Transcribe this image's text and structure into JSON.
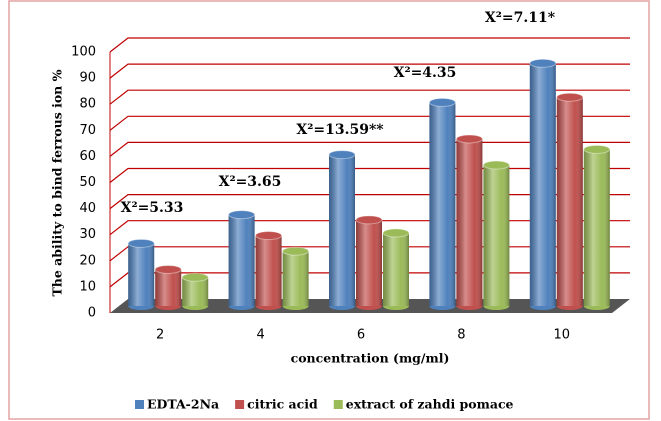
{
  "chart_data": {
    "type": "bar",
    "categories": [
      "2",
      "4",
      "6",
      "8",
      "10"
    ],
    "series": [
      {
        "name": "EDTA-2Na",
        "color": "#4f81bd",
        "values": [
          24,
          35,
          58,
          78,
          93
        ]
      },
      {
        "name": "citric acid",
        "color": "#c0504d",
        "values": [
          14,
          27,
          33,
          64,
          80
        ]
      },
      {
        "name": "extract of zahdi pomace",
        "color": "#9bbb59",
        "values": [
          11,
          21,
          28,
          54,
          60
        ]
      }
    ],
    "ylim": [
      0,
      100
    ],
    "yticks": [
      0,
      10,
      20,
      30,
      40,
      50,
      60,
      70,
      80,
      90,
      100
    ],
    "y_label": "The ability to bind ferrous ion %",
    "x_label": "concentration (mg/ml)",
    "annotations": [
      "X²=5.33",
      "X²=3.65",
      "X²=13.59**",
      "X²=4.35",
      "X²=7.11*"
    ],
    "grid": true,
    "legend": "bottom"
  }
}
